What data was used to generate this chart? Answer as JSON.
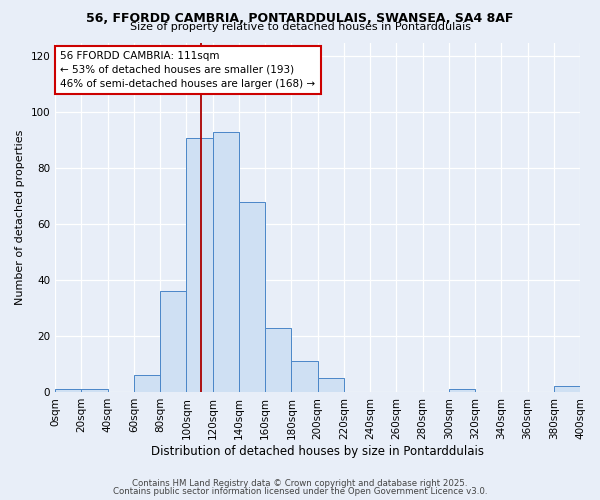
{
  "title1": "56, FFORDD CAMBRIA, PONTARDDULAIS, SWANSEA, SA4 8AF",
  "title2": "Size of property relative to detached houses in Pontarddulais",
  "xlabel": "Distribution of detached houses by size in Pontarddulais",
  "ylabel": "Number of detached properties",
  "bins": [
    0,
    20,
    40,
    60,
    80,
    100,
    120,
    140,
    160,
    180,
    200,
    220,
    240,
    260,
    280,
    300,
    320,
    340,
    360,
    380,
    400
  ],
  "counts": [
    1,
    1,
    0,
    6,
    36,
    91,
    93,
    68,
    23,
    11,
    5,
    0,
    0,
    0,
    0,
    1,
    0,
    0,
    0,
    2
  ],
  "bar_color": "#cfe0f3",
  "bar_edge_color": "#4a86c8",
  "vline_x": 111,
  "vline_color": "#aa0000",
  "annotation_text": "56 FFORDD CAMBRIA: 111sqm\n← 53% of detached houses are smaller (193)\n46% of semi-detached houses are larger (168) →",
  "annotation_box_color": "#ffffff",
  "annotation_box_edge": "#cc0000",
  "footer1": "Contains HM Land Registry data © Crown copyright and database right 2025.",
  "footer2": "Contains public sector information licensed under the Open Government Licence v3.0.",
  "bg_color": "#e8eef8",
  "plot_bg_color": "#e8eef8",
  "ylim": [
    0,
    125
  ],
  "xlim": [
    0,
    400
  ],
  "yticks": [
    0,
    20,
    40,
    60,
    80,
    100,
    120
  ],
  "tick_labels": [
    "0sqm",
    "20sqm",
    "40sqm",
    "60sqm",
    "80sqm",
    "100sqm",
    "120sqm",
    "140sqm",
    "160sqm",
    "180sqm",
    "200sqm",
    "220sqm",
    "240sqm",
    "260sqm",
    "280sqm",
    "300sqm",
    "320sqm",
    "340sqm",
    "360sqm",
    "380sqm",
    "400sqm"
  ]
}
